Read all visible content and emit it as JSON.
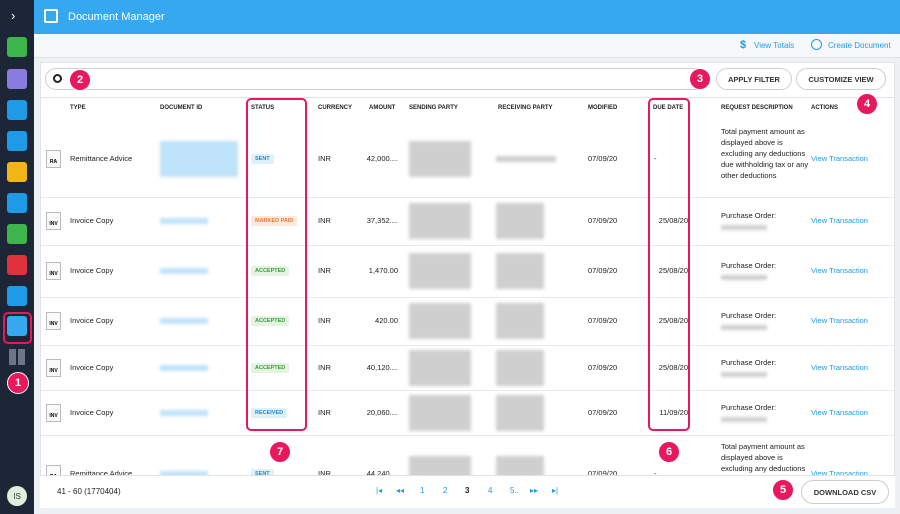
{
  "sidebar": {
    "avatar": "IS"
  },
  "header": {
    "title": "Document Manager"
  },
  "toolbar": {
    "view_totals": "View Totals",
    "create_document": "Create Document"
  },
  "filter": {
    "apply": "APPLY FILTER",
    "customize": "CUSTOMIZE VIEW"
  },
  "table": {
    "columns": [
      "TYPE",
      "DOCUMENT ID",
      "STATUS",
      "CURRENCY",
      "AMOUNT",
      "SENDING PARTY",
      "RECEIVING PARTY",
      "MODIFIED",
      "DUE DATE",
      "REQUEST DESCRIPTION",
      "ACTIONS"
    ],
    "rows": [
      {
        "icon": "RA",
        "type": "Remittance Advice",
        "status": "SENT",
        "currency": "INR",
        "amount": "42,000....",
        "modified": "07/09/20",
        "due_date": "-",
        "description": "Total payment amount as displayed above is excluding any deductions due withholding tax or any other deductions",
        "action": "View Transaction"
      },
      {
        "icon": "INV",
        "type": "Invoice Copy",
        "status": "MARKED PAID",
        "currency": "INR",
        "amount": "37,352....",
        "modified": "07/09/20",
        "due_date": "25/08/20",
        "description": "Purchase Order:",
        "action": "View Transaction"
      },
      {
        "icon": "INV",
        "type": "Invoice Copy",
        "status": "ACCEPTED",
        "currency": "INR",
        "amount": "1,470.00",
        "modified": "07/09/20",
        "due_date": "25/08/20",
        "description": "Purchase Order:",
        "action": "View Transaction"
      },
      {
        "icon": "INV",
        "type": "Invoice Copy",
        "status": "ACCEPTED",
        "currency": "INR",
        "amount": "420.00",
        "modified": "07/09/20",
        "due_date": "25/08/20",
        "description": "Purchase Order:",
        "action": "View Transaction"
      },
      {
        "icon": "INV",
        "type": "Invoice Copy",
        "status": "ACCEPTED",
        "currency": "INR",
        "amount": "40,120....",
        "modified": "07/09/20",
        "due_date": "25/08/20",
        "description": "Purchase Order:",
        "action": "View Transaction"
      },
      {
        "icon": "INV",
        "type": "Invoice Copy",
        "status": "RECEIVED",
        "currency": "INR",
        "amount": "20,060....",
        "modified": "07/09/20",
        "due_date": "11/09/20",
        "description": "Purchase Order:",
        "action": "View Transaction"
      },
      {
        "icon": "RA",
        "type": "Remittance Advice",
        "status": "SENT",
        "currency": "INR",
        "amount": "44,240....",
        "modified": "07/09/20",
        "due_date": "-",
        "description": "Total payment amount as displayed above is excluding any deductions due withholding tax or any other deductions",
        "action": "View Transaction"
      }
    ]
  },
  "footer": {
    "range": "41 - 60 (1770404)",
    "pages": [
      {
        "label": "1",
        "current": false
      },
      {
        "label": "2",
        "current": false
      },
      {
        "label": "3",
        "current": true
      },
      {
        "label": "4",
        "current": false
      },
      {
        "label": "5..",
        "current": false
      }
    ],
    "download": "DOWNLOAD CSV"
  },
  "annotations": [
    "1",
    "2",
    "3",
    "4",
    "5",
    "6",
    "7"
  ]
}
